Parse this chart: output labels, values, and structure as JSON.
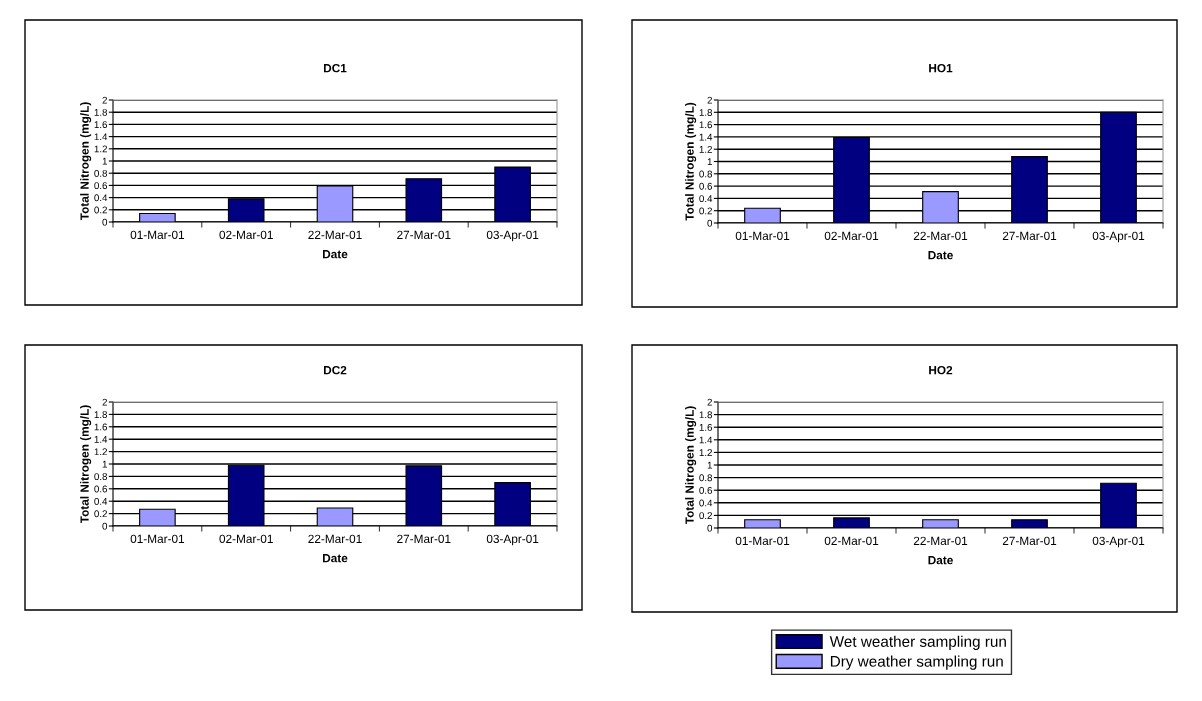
{
  "chart_data": [
    {
      "type": "bar",
      "title": "DC1",
      "xlabel": "Date",
      "ylabel": "Total Nitrogen (mg/L)",
      "categories": [
        "01-Mar-01",
        "02-Mar-01",
        "22-Mar-01",
        "27-Mar-01",
        "03-Apr-01"
      ],
      "ylim": [
        0,
        2
      ],
      "yticks": [
        0,
        0.2,
        0.4,
        0.6,
        0.8,
        1,
        1.2,
        1.4,
        1.6,
        1.8,
        2
      ],
      "grid": "y",
      "series": [
        {
          "color": "#000080",
          "values": [
            null,
            0.38,
            null,
            0.71,
            0.9
          ]
        },
        {
          "color": "#9999ff",
          "values": [
            0.14,
            null,
            0.59,
            null,
            null
          ]
        }
      ]
    },
    {
      "type": "bar",
      "title": "HO1",
      "xlabel": "Date",
      "ylabel": "Total Nitrogen (mg/L)",
      "categories": [
        "01-Mar-01",
        "02-Mar-01",
        "22-Mar-01",
        "27-Mar-01",
        "03-Apr-01"
      ],
      "ylim": [
        0,
        2
      ],
      "yticks": [
        0,
        0.2,
        0.4,
        0.6,
        0.8,
        1,
        1.2,
        1.4,
        1.6,
        1.8,
        2
      ],
      "grid": "y",
      "series": [
        {
          "color": "#000080",
          "values": [
            null,
            1.39,
            null,
            1.08,
            1.8
          ]
        },
        {
          "color": "#9999ff",
          "values": [
            0.24,
            null,
            0.51,
            null,
            null
          ]
        }
      ]
    },
    {
      "type": "bar",
      "title": "DC2",
      "xlabel": "Date",
      "ylabel": "Total Nitrogen (mg/L)",
      "categories": [
        "01-Mar-01",
        "02-Mar-01",
        "22-Mar-01",
        "27-Mar-01",
        "03-Apr-01"
      ],
      "ylim": [
        0,
        2
      ],
      "yticks": [
        0,
        0.2,
        0.4,
        0.6,
        0.8,
        1,
        1.2,
        1.4,
        1.6,
        1.8,
        2
      ],
      "grid": "y",
      "series": [
        {
          "color": "#000080",
          "values": [
            null,
            0.98,
            null,
            0.97,
            0.7
          ]
        },
        {
          "color": "#9999ff",
          "values": [
            0.27,
            null,
            0.29,
            null,
            null
          ]
        }
      ]
    },
    {
      "type": "bar",
      "title": "HO2",
      "xlabel": "Date",
      "ylabel": "Total Nitrogen (mg/L)",
      "categories": [
        "01-Mar-01",
        "02-Mar-01",
        "22-Mar-01",
        "27-Mar-01",
        "03-Apr-01"
      ],
      "ylim": [
        0,
        2
      ],
      "yticks": [
        0,
        0.2,
        0.4,
        0.6,
        0.8,
        1,
        1.2,
        1.4,
        1.6,
        1.8,
        2
      ],
      "grid": "y",
      "legend": "bottom",
      "series": [
        {
          "name": "Wet weather sampling run",
          "color": "#000080",
          "values": [
            null,
            0.16,
            null,
            0.13,
            0.71
          ]
        },
        {
          "name": "Dry weather sampling run",
          "color": "#9999ff",
          "values": [
            0.13,
            null,
            0.13,
            null,
            null
          ]
        }
      ]
    }
  ]
}
